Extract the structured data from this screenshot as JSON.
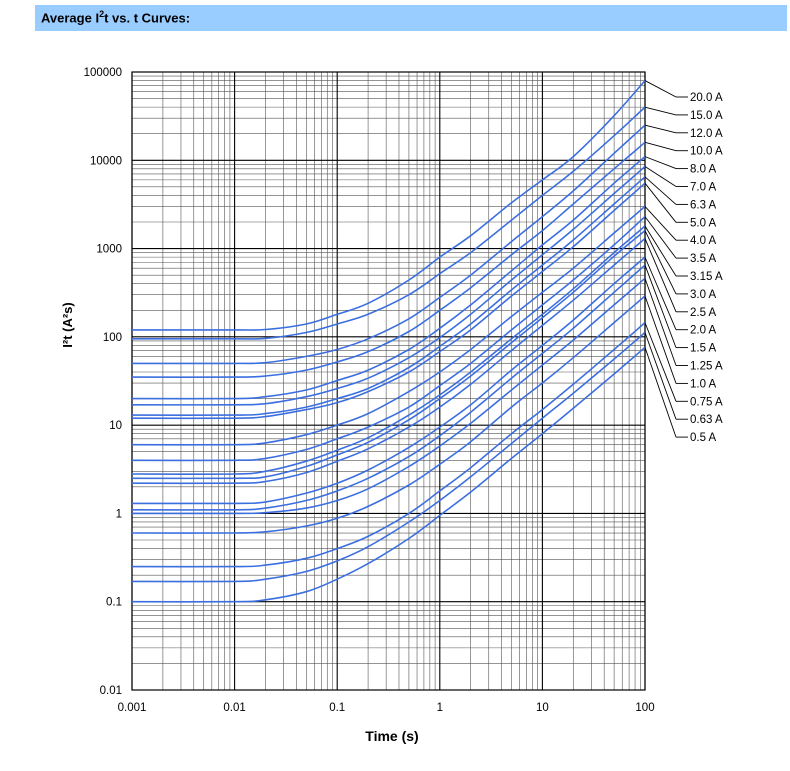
{
  "header": {
    "title_prefix": "Average I",
    "title_sup": "2",
    "title_suffix": "t vs. t Curves:"
  },
  "chart_data": {
    "type": "line",
    "title": "Average I²t vs. t Curves:",
    "xlabel": "Time (s)",
    "ylabel": "I²t (A²s)",
    "xscale": "log",
    "yscale": "log",
    "xlim": [
      0.001,
      100
    ],
    "ylim": [
      0.01,
      100000
    ],
    "x_ticks": [
      "0.001",
      "0.01",
      "0.1",
      "1",
      "10",
      "100"
    ],
    "y_ticks": [
      "0.01",
      "0.1",
      "1",
      "10",
      "100",
      "1000",
      "10000",
      "100000"
    ],
    "grid": true,
    "legend_position": "right",
    "x": [
      0.001,
      0.01,
      0.02,
      0.05,
      0.1,
      0.2,
      0.5,
      1,
      2,
      5,
      10,
      20,
      50,
      100
    ],
    "series": [
      {
        "name": "20.0 A",
        "values": [
          120,
          120,
          121,
          140,
          180,
          240,
          440,
          800,
          1400,
          3300,
          6000,
          11000,
          32000,
          80000
        ]
      },
      {
        "name": "15.0 A",
        "values": [
          95,
          95,
          96,
          112,
          140,
          180,
          300,
          520,
          900,
          2100,
          4000,
          7500,
          19000,
          40000
        ]
      },
      {
        "name": "12.0 A",
        "values": [
          50,
          50,
          51,
          60,
          72,
          95,
          160,
          280,
          500,
          1200,
          2300,
          4500,
          12000,
          25000
        ]
      },
      {
        "name": "10.0 A",
        "values": [
          35,
          35,
          36,
          42,
          52,
          68,
          115,
          200,
          360,
          850,
          1600,
          3200,
          8000,
          16000
        ]
      },
      {
        "name": "8.0 A",
        "values": [
          20,
          20,
          21,
          25,
          32,
          42,
          72,
          125,
          230,
          560,
          1100,
          2100,
          5500,
          11000
        ]
      },
      {
        "name": "7.0 A",
        "values": [
          17,
          17,
          17.5,
          21,
          26,
          34,
          58,
          98,
          180,
          440,
          850,
          1650,
          4200,
          8500
        ]
      },
      {
        "name": "6.3 A",
        "values": [
          13,
          13,
          13.5,
          16,
          20,
          26,
          45,
          78,
          140,
          340,
          650,
          1250,
          3200,
          6500
        ]
      },
      {
        "name": "5.0 A",
        "values": [
          12,
          12,
          12.5,
          15,
          18,
          24,
          40,
          68,
          120,
          290,
          550,
          1050,
          2700,
          5500
        ]
      },
      {
        "name": "4.0 A",
        "values": [
          6,
          6,
          6.3,
          7.8,
          10,
          13.5,
          24,
          40,
          72,
          170,
          320,
          600,
          1500,
          3000
        ]
      },
      {
        "name": "3.5 A",
        "values": [
          4,
          4,
          4.2,
          5.3,
          7,
          9.5,
          16,
          28,
          50,
          120,
          230,
          440,
          1100,
          2300
        ]
      },
      {
        "name": "3.15 A",
        "values": [
          2.8,
          2.8,
          3,
          3.9,
          5.2,
          7.2,
          13,
          22,
          40,
          95,
          180,
          350,
          900,
          1800
        ]
      },
      {
        "name": "3.0 A",
        "values": [
          2.5,
          2.5,
          2.6,
          3.4,
          4.6,
          6.4,
          11.5,
          20,
          36,
          86,
          165,
          320,
          820,
          1600
        ]
      },
      {
        "name": "2.5 A",
        "values": [
          2.2,
          2.2,
          2.3,
          2.9,
          3.9,
          5.4,
          9.5,
          16,
          29,
          70,
          135,
          260,
          650,
          1300
        ]
      },
      {
        "name": "2.0 A",
        "values": [
          1.3,
          1.3,
          1.35,
          1.7,
          2.2,
          3.1,
          5.6,
          9.5,
          17,
          42,
          80,
          155,
          400,
          800
        ]
      },
      {
        "name": "1.5 A",
        "values": [
          1.1,
          1.1,
          1.15,
          1.4,
          1.8,
          2.5,
          4.4,
          7.6,
          14,
          34,
          65,
          125,
          320,
          650
        ]
      },
      {
        "name": "1.25 A",
        "values": [
          1,
          1,
          1.02,
          1.15,
          1.4,
          1.9,
          3.4,
          5.8,
          10.5,
          25,
          48,
          92,
          230,
          460
        ]
      },
      {
        "name": "1.0 A",
        "values": [
          0.6,
          0.6,
          0.62,
          0.72,
          0.88,
          1.2,
          2.1,
          3.6,
          6.5,
          16,
          30,
          58,
          145,
          290
        ]
      },
      {
        "name": "0.75 A",
        "values": [
          0.25,
          0.25,
          0.26,
          0.31,
          0.4,
          0.55,
          1,
          1.8,
          3.3,
          8,
          15,
          29,
          72,
          145
        ]
      },
      {
        "name": "0.63 A",
        "values": [
          0.17,
          0.17,
          0.18,
          0.22,
          0.29,
          0.42,
          0.8,
          1.4,
          2.6,
          6.2,
          12,
          23,
          56,
          112
        ]
      },
      {
        "name": "0.5 A",
        "values": [
          0.1,
          0.1,
          0.105,
          0.13,
          0.18,
          0.27,
          0.52,
          0.95,
          1.75,
          4.2,
          8,
          15.5,
          38,
          76
        ]
      }
    ]
  },
  "style": {
    "line_color": "#3b6fe0",
    "header_color": "#99ccff"
  }
}
